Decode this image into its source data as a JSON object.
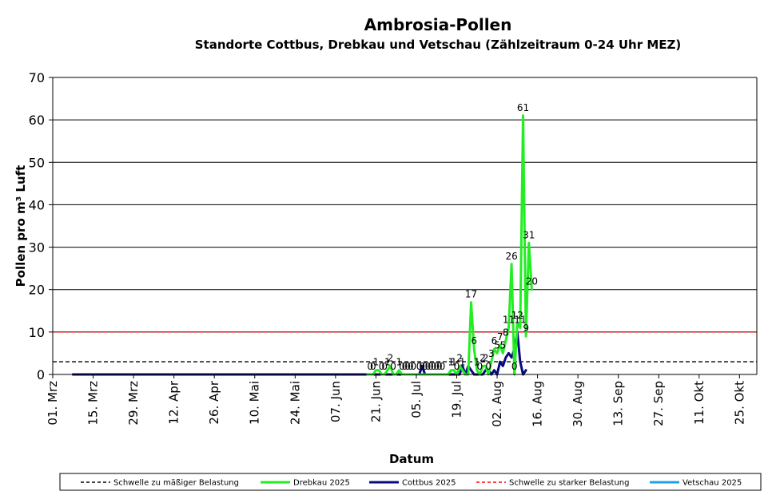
{
  "chart_data": {
    "type": "line",
    "title": "Ambrosia-Pollen",
    "subtitle": "Standorte Cottbus, Drebkau und Vetschau (Zählzeitraum 0-24 Uhr MEZ)",
    "xlabel": "Datum",
    "ylabel": "Pollen pro m³ Luft",
    "ylim": [
      0,
      70
    ],
    "yticks": [
      0,
      10,
      20,
      30,
      40,
      50,
      60,
      70
    ],
    "grid": "horizontal",
    "x_range": [
      "2025-03-01",
      "2025-10-31"
    ],
    "xticks": [
      {
        "date": "2025-03-01",
        "label": "01. Mrz"
      },
      {
        "date": "2025-03-15",
        "label": "15. Mrz"
      },
      {
        "date": "2025-03-29",
        "label": "29. Mrz"
      },
      {
        "date": "2025-04-12",
        "label": "12. Apr"
      },
      {
        "date": "2025-04-26",
        "label": "26. Apr"
      },
      {
        "date": "2025-05-10",
        "label": "10. Mai"
      },
      {
        "date": "2025-05-24",
        "label": "24. Mai"
      },
      {
        "date": "2025-06-07",
        "label": "07. Jun"
      },
      {
        "date": "2025-06-21",
        "label": "21. Jun"
      },
      {
        "date": "2025-07-05",
        "label": "05. Jul"
      },
      {
        "date": "2025-07-19",
        "label": "19. Jul"
      },
      {
        "date": "2025-08-02",
        "label": "02. Aug"
      },
      {
        "date": "2025-08-16",
        "label": "16. Aug"
      },
      {
        "date": "2025-08-30",
        "label": "30. Aug"
      },
      {
        "date": "2025-09-13",
        "label": "13. Sep"
      },
      {
        "date": "2025-09-27",
        "label": "27. Sep"
      },
      {
        "date": "2025-10-11",
        "label": "11. Okt"
      },
      {
        "date": "2025-10-25",
        "label": "25. Okt"
      }
    ],
    "thresholds": [
      {
        "name": "Schwelle zu mäßiger Belastung",
        "value": 3,
        "color": "#000000",
        "style": "dashed"
      },
      {
        "name": "Schwelle zu starker Belastung",
        "value": 10,
        "color": "#ff0000",
        "style": "dashed"
      }
    ],
    "series": [
      {
        "name": "Drebkau 2025",
        "color": "#22ee22",
        "points": [
          [
            "2025-06-18",
            0
          ],
          [
            "2025-06-19",
            0
          ],
          [
            "2025-06-20",
            0
          ],
          [
            "2025-06-21",
            1
          ],
          [
            "2025-06-22",
            1
          ],
          [
            "2025-06-23",
            0
          ],
          [
            "2025-06-24",
            0
          ],
          [
            "2025-06-25",
            1
          ],
          [
            "2025-06-26",
            2
          ],
          [
            "2025-06-27",
            0
          ],
          [
            "2025-06-28",
            0
          ],
          [
            "2025-06-29",
            1
          ],
          [
            "2025-06-30",
            0
          ],
          [
            "2025-07-01",
            0
          ],
          [
            "2025-07-02",
            0
          ],
          [
            "2025-07-03",
            0
          ],
          [
            "2025-07-04",
            0
          ],
          [
            "2025-07-05",
            0
          ],
          [
            "2025-07-06",
            0
          ],
          [
            "2025-07-07",
            0
          ],
          [
            "2025-07-08",
            0
          ],
          [
            "2025-07-09",
            0
          ],
          [
            "2025-07-10",
            0
          ],
          [
            "2025-07-11",
            0
          ],
          [
            "2025-07-12",
            0
          ],
          [
            "2025-07-13",
            0
          ],
          [
            "2025-07-14",
            0
          ],
          [
            "2025-07-15",
            0
          ],
          [
            "2025-07-16",
            0
          ],
          [
            "2025-07-17",
            1
          ],
          [
            "2025-07-18",
            1
          ],
          [
            "2025-07-19",
            0
          ],
          [
            "2025-07-20",
            2
          ],
          [
            "2025-07-21",
            1
          ],
          [
            "2025-07-22",
            0
          ],
          [
            "2025-07-23",
            0
          ],
          [
            "2025-07-24",
            17
          ],
          [
            "2025-07-25",
            6
          ],
          [
            "2025-07-26",
            1
          ],
          [
            "2025-07-27",
            0
          ],
          [
            "2025-07-28",
            2
          ],
          [
            "2025-07-29",
            2
          ],
          [
            "2025-07-30",
            0
          ],
          [
            "2025-07-31",
            3
          ],
          [
            "2025-08-01",
            6
          ],
          [
            "2025-08-02",
            5
          ],
          [
            "2025-08-03",
            7
          ],
          [
            "2025-08-04",
            5
          ],
          [
            "2025-08-05",
            8
          ],
          [
            "2025-08-06",
            11
          ],
          [
            "2025-08-07",
            26
          ],
          [
            "2025-08-08",
            0
          ],
          [
            "2025-08-09",
            12
          ],
          [
            "2025-08-10",
            11
          ],
          [
            "2025-08-11",
            61
          ],
          [
            "2025-08-12",
            9
          ],
          [
            "2025-08-13",
            31
          ],
          [
            "2025-08-14",
            20
          ]
        ],
        "labeled_points": [
          [
            "2025-06-19",
            0
          ],
          [
            "2025-06-20",
            0
          ],
          [
            "2025-06-21",
            1
          ],
          [
            "2025-06-23",
            0
          ],
          [
            "2025-06-24",
            0
          ],
          [
            "2025-06-25",
            1
          ],
          [
            "2025-06-26",
            2
          ],
          [
            "2025-06-27",
            0
          ],
          [
            "2025-06-29",
            1
          ],
          [
            "2025-06-30",
            0
          ],
          [
            "2025-07-01",
            0
          ],
          [
            "2025-07-02",
            0
          ],
          [
            "2025-07-03",
            0
          ],
          [
            "2025-07-04",
            0
          ],
          [
            "2025-07-06",
            0
          ],
          [
            "2025-07-07",
            0
          ],
          [
            "2025-07-08",
            0
          ],
          [
            "2025-07-09",
            0
          ],
          [
            "2025-07-10",
            0
          ],
          [
            "2025-07-11",
            0
          ],
          [
            "2025-07-12",
            0
          ],
          [
            "2025-07-13",
            0
          ],
          [
            "2025-07-14",
            0
          ],
          [
            "2025-07-17",
            1
          ],
          [
            "2025-07-18",
            1
          ],
          [
            "2025-07-19",
            0
          ],
          [
            "2025-07-20",
            2
          ],
          [
            "2025-07-21",
            1
          ],
          [
            "2025-07-24",
            17
          ],
          [
            "2025-07-25",
            6
          ],
          [
            "2025-07-26",
            1
          ],
          [
            "2025-07-27",
            0
          ],
          [
            "2025-07-28",
            2
          ],
          [
            "2025-07-29",
            2
          ],
          [
            "2025-07-30",
            0
          ],
          [
            "2025-07-31",
            3
          ],
          [
            "2025-08-01",
            6
          ],
          [
            "2025-08-02",
            5
          ],
          [
            "2025-08-03",
            7
          ],
          [
            "2025-08-04",
            5
          ],
          [
            "2025-08-05",
            8
          ],
          [
            "2025-08-06",
            11
          ],
          [
            "2025-08-07",
            26
          ],
          [
            "2025-08-08",
            0
          ],
          [
            "2025-08-09",
            12
          ],
          [
            "2025-08-10",
            11
          ],
          [
            "2025-08-11",
            61
          ],
          [
            "2025-08-12",
            9
          ],
          [
            "2025-08-13",
            31
          ],
          [
            "2025-08-14",
            20
          ]
        ]
      },
      {
        "name": "Cottbus 2025",
        "color": "#0a0a80",
        "points": [
          [
            "2025-03-08",
            0
          ],
          [
            "2025-06-30",
            0
          ],
          [
            "2025-07-06",
            0
          ],
          [
            "2025-07-07",
            2
          ],
          [
            "2025-07-08",
            0
          ],
          [
            "2025-07-19",
            0
          ],
          [
            "2025-07-20",
            0
          ],
          [
            "2025-07-21",
            2
          ],
          [
            "2025-07-22",
            0
          ],
          [
            "2025-07-23",
            2
          ],
          [
            "2025-07-24",
            1
          ],
          [
            "2025-07-25",
            0
          ],
          [
            "2025-07-28",
            0
          ],
          [
            "2025-07-29",
            1
          ],
          [
            "2025-07-30",
            1
          ],
          [
            "2025-07-31",
            0
          ],
          [
            "2025-08-01",
            1
          ],
          [
            "2025-08-02",
            0
          ],
          [
            "2025-08-03",
            3
          ],
          [
            "2025-08-04",
            2
          ],
          [
            "2025-08-05",
            4
          ],
          [
            "2025-08-06",
            5
          ],
          [
            "2025-08-07",
            4
          ],
          [
            "2025-08-08",
            6
          ],
          [
            "2025-08-09",
            10
          ],
          [
            "2025-08-10",
            3
          ],
          [
            "2025-08-11",
            0
          ],
          [
            "2025-08-12",
            1
          ]
        ]
      },
      {
        "name": "Vetschau 2025",
        "color": "#1ea0e6",
        "points": []
      }
    ],
    "legend": {
      "placement": "bottom",
      "entries": [
        {
          "label": "Schwelle zu mäßiger Belastung",
          "color": "#000000",
          "style": "dashed"
        },
        {
          "label": "Drebkau 2025",
          "color": "#22ee22",
          "style": "solid"
        },
        {
          "label": "Cottbus 2025",
          "color": "#0a0a80",
          "style": "solid"
        },
        {
          "label": "Schwelle zu starker Belastung",
          "color": "#ff0000",
          "style": "dashed"
        },
        {
          "label": "Vetschau 2025",
          "color": "#1ea0e6",
          "style": "solid"
        }
      ]
    }
  }
}
